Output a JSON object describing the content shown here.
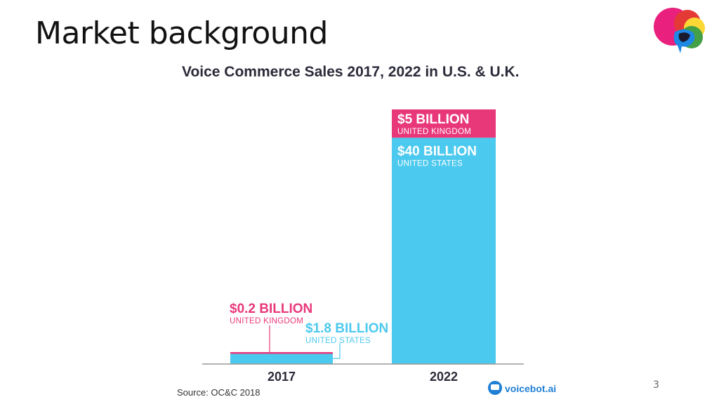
{
  "slide": {
    "title": "Market background",
    "page_number": "3"
  },
  "colors": {
    "uk": "#E8387A",
    "us": "#4CC9EE",
    "text_dark": "#2B2B3A",
    "axis": "#999999"
  },
  "logo": {
    "name": "colorful-speech-bubble-logo"
  },
  "chart_data": {
    "type": "bar",
    "stacked": true,
    "title": "Voice Commerce Sales 2017, 2022 in U.S. & U.K.",
    "categories": [
      "2017",
      "2022"
    ],
    "ylim": [
      0,
      45
    ],
    "unit": "billion USD",
    "series": [
      {
        "name": "UNITED STATES",
        "key": "us",
        "values": [
          1.8,
          40
        ]
      },
      {
        "name": "UNITED KINGDOM",
        "key": "uk",
        "values": [
          0.2,
          5
        ]
      }
    ],
    "data_labels": [
      {
        "category": "2022",
        "series": "uk",
        "value": "$5 BILLION",
        "sublabel": "UNITED KINGDOM"
      },
      {
        "category": "2022",
        "series": "us",
        "value": "$40 BILLION",
        "sublabel": "UNITED STATES"
      },
      {
        "category": "2017",
        "series": "uk",
        "value": "$0.2 BILLION",
        "sublabel": "UNITED KINGDOM"
      },
      {
        "category": "2017",
        "series": "us",
        "value": "$1.8 BILLION",
        "sublabel": "UNITED STATES"
      }
    ],
    "source": "Source: OC&C 2018",
    "brand": "voicebot.ai"
  }
}
